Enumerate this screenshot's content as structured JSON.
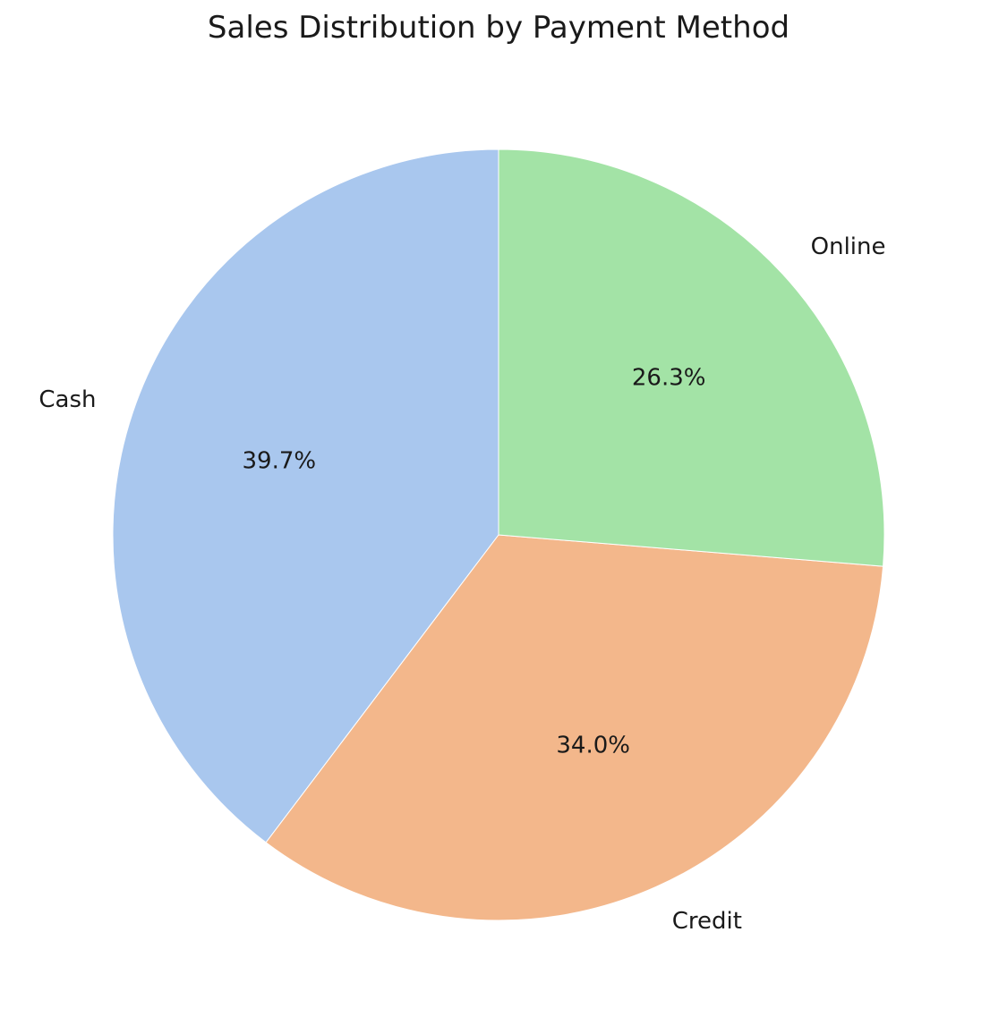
{
  "chart_data": {
    "type": "pie",
    "title": "Sales Distribution by Payment Method",
    "categories": [
      "Cash",
      "Credit",
      "Online"
    ],
    "values": [
      39.7,
      34.0,
      26.3
    ],
    "value_labels": [
      "39.7%",
      "34.0%",
      "26.3%"
    ],
    "colors": [
      "#a9c7ee",
      "#f3b78b",
      "#a3e3a6"
    ],
    "start_angle_deg": 90,
    "direction": "counterclockwise"
  }
}
